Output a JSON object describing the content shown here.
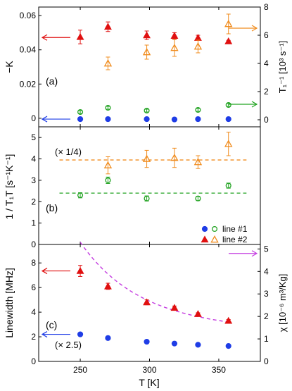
{
  "colors": {
    "blue": "#1f3de6",
    "green": "#22a322",
    "red": "#e01010",
    "orange": "#f08c1e",
    "magenta": "#c43ce0",
    "axis": "#000000"
  },
  "chart_data": [
    {
      "type": "scatter",
      "panel_label": "(a)",
      "xlim": [
        220,
        380
      ],
      "ylabel_left": "−K",
      "ylim_left": [
        -0.005,
        0.065
      ],
      "yticks_left": [
        "0",
        "0.02",
        "0.04",
        "0.06"
      ],
      "ylabel_right": "T₁⁻¹ [10³ s⁻¹]",
      "ylim_right": [
        -0.5,
        8
      ],
      "yticks_right": [
        "0",
        "2",
        "4",
        "6",
        "8"
      ],
      "series": [
        {
          "key": "K_line1",
          "axis": "left",
          "marker": "circle-filled",
          "color": "blue",
          "x": [
            250,
            270,
            298,
            318,
            335,
            357
          ],
          "y": [
            -0.0005,
            -0.0005,
            -0.0005,
            -0.0007,
            -0.0005,
            -0.0005
          ],
          "err": [
            0,
            0,
            0,
            0,
            0,
            0
          ]
        },
        {
          "key": "K_line2",
          "axis": "left",
          "marker": "triangle-filled",
          "color": "red",
          "x": [
            250,
            270,
            298,
            318,
            335,
            357
          ],
          "y": [
            0.0475,
            0.0535,
            0.0485,
            0.0482,
            0.047,
            0.045
          ],
          "err": [
            0.004,
            0.0028,
            0.0025,
            0.0018,
            0.0015,
            0.0005
          ]
        },
        {
          "key": "T1_line1",
          "axis": "right",
          "marker": "circle-open",
          "color": "green",
          "x": [
            250,
            270,
            298,
            318,
            335,
            357
          ],
          "y": [
            0.55,
            0.85,
            0.65,
            0.0,
            0.7,
            1.05
          ],
          "err": [
            0.1,
            0.1,
            0.1,
            0,
            0.1,
            0.1
          ]
        },
        {
          "key": "T1_line2",
          "axis": "right",
          "marker": "triangle-open",
          "color": "orange",
          "x": [
            270,
            298,
            318,
            335,
            357
          ],
          "y": [
            4.0,
            4.8,
            5.1,
            5.2,
            6.8
          ],
          "err": [
            0.45,
            0.5,
            0.6,
            0.45,
            0.7
          ]
        }
      ],
      "arrows": [
        {
          "dir": "left",
          "color": "red",
          "y": 0.0472,
          "axis": "left"
        },
        {
          "dir": "left",
          "color": "blue",
          "y": -0.0005,
          "axis": "left"
        },
        {
          "dir": "right",
          "color": "orange",
          "y": 6.5,
          "axis": "right"
        },
        {
          "dir": "right",
          "color": "green",
          "y": 1.1,
          "axis": "right"
        }
      ]
    },
    {
      "type": "scatter",
      "panel_label": "(b)",
      "xlim": [
        220,
        380
      ],
      "ylabel_left": "1 / T₁T [s⁻¹K⁻¹]",
      "ylim_left": [
        0,
        5.5
      ],
      "yticks_left": [
        "0",
        "1",
        "2",
        "3",
        "4",
        "5"
      ],
      "annotation": "(× 1/4)",
      "series": [
        {
          "key": "T1T_line1",
          "marker": "circle-open",
          "color": "green",
          "x": [
            250,
            270,
            298,
            318,
            335,
            357
          ],
          "y": [
            2.3,
            3.0,
            2.15,
            0,
            2.15,
            2.75
          ],
          "err": [
            0.12,
            0.15,
            0.12,
            0,
            0.1,
            0.12
          ]
        },
        {
          "key": "T1T_line2",
          "marker": "triangle-open",
          "color": "orange",
          "x": [
            270,
            298,
            318,
            335,
            357
          ],
          "y": [
            3.7,
            4.0,
            4.05,
            3.85,
            4.7
          ],
          "err": [
            0.4,
            0.4,
            0.45,
            0.3,
            0.55
          ]
        }
      ],
      "hlines": [
        {
          "y": 3.95,
          "color": "orange"
        },
        {
          "y": 2.4,
          "color": "green"
        }
      ],
      "legend": [
        {
          "label": "line #1",
          "marker": "circle-filled",
          "color": "blue",
          "marker2": "circle-open",
          "color2": "green"
        },
        {
          "label": "line #2",
          "marker": "triangle-filled",
          "color": "red",
          "marker2": "triangle-open",
          "color2": "orange"
        }
      ],
      "legend_position": "bottom-right"
    },
    {
      "type": "scatter",
      "panel_label": "(c)",
      "xlim": [
        220,
        380
      ],
      "xlabel": "T [K]",
      "xticks": [
        "250",
        "300",
        "350"
      ],
      "ylabel_left": "Linewidth [MHz]",
      "ylim_left": [
        0,
        9.5
      ],
      "yticks_left": [
        "0",
        "2",
        "4",
        "6",
        "8"
      ],
      "ylabel_right": "χ [10⁻⁶ m³/Kg]",
      "ylim_right": [
        0,
        5.2
      ],
      "yticks_right": [
        "0",
        "1",
        "2",
        "3",
        "4",
        "5"
      ],
      "annotation": "(× 2.5)",
      "series": [
        {
          "key": "LW_line1",
          "axis": "left",
          "marker": "circle-filled",
          "color": "blue",
          "x": [
            250,
            270,
            298,
            318,
            335,
            357
          ],
          "y": [
            2.2,
            1.9,
            1.6,
            1.45,
            1.35,
            1.25
          ],
          "err": [
            0,
            0,
            0,
            0,
            0,
            0
          ]
        },
        {
          "key": "LW_line2",
          "axis": "left",
          "marker": "triangle-filled",
          "color": "red",
          "x": [
            250,
            270,
            298,
            318,
            335,
            357
          ],
          "y": [
            7.35,
            6.1,
            4.8,
            4.35,
            3.85,
            3.3
          ],
          "err": [
            0.45,
            0.25,
            0.2,
            0.15,
            0.1,
            0.1
          ]
        }
      ],
      "curve": {
        "axis": "right",
        "color": "magenta",
        "x_start": 250,
        "x_end": 357,
        "y_start": 5.3,
        "y_end": 1.75
      },
      "arrows": [
        {
          "dir": "left",
          "color": "red",
          "y": 7.35,
          "axis": "left"
        },
        {
          "dir": "left",
          "color": "blue",
          "y": 2.2,
          "axis": "left"
        },
        {
          "dir": "right",
          "color": "magenta",
          "y": 4.8,
          "axis": "right"
        }
      ]
    }
  ]
}
